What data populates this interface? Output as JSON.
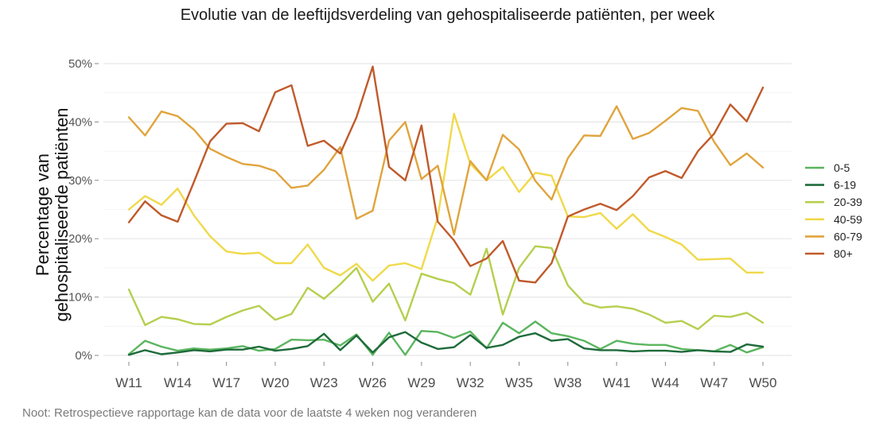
{
  "chart_data": {
    "type": "line",
    "title": "Evolutie van de leeftijdsverdeling van gehospitaliseerde patiënten, per week",
    "ylabel_line1": "Percentage van",
    "ylabel_line2": "gehospitaliseerde patiënten",
    "xlabel": "",
    "note": "Noot: Retrospectieve rapportage kan de data voor de laatste 4 weken nog veranderen",
    "ylim": [
      0,
      50
    ],
    "y_ticks": [
      0,
      10,
      20,
      30,
      40,
      50
    ],
    "y_tick_labels": [
      "0%",
      "10%",
      "20%",
      "30%",
      "40%",
      "50%"
    ],
    "x_tick_labels": [
      "W11",
      "W14",
      "W17",
      "W20",
      "W23",
      "W26",
      "W29",
      "W32",
      "W35",
      "W38",
      "W41",
      "W44",
      "W47",
      "W50"
    ],
    "x": [
      11,
      12,
      13,
      14,
      15,
      16,
      17,
      18,
      19,
      20,
      21,
      22,
      23,
      24,
      25,
      26,
      27,
      28,
      29,
      30,
      31,
      32,
      33,
      34,
      35,
      36,
      37,
      38,
      39,
      40,
      41,
      42,
      43,
      44,
      45,
      46,
      47,
      48,
      49,
      50
    ],
    "legend_position": "right",
    "series": [
      {
        "name": "0-5",
        "color": "#5bb55f",
        "values": [
          0.2,
          2.5,
          1.5,
          0.8,
          1.2,
          1.0,
          1.2,
          1.6,
          0.8,
          1.1,
          2.7,
          2.6,
          2.7,
          1.7,
          3.6,
          0.1,
          3.9,
          0.1,
          4.2,
          4.0,
          3.0,
          4.1,
          1.2,
          5.6,
          3.8,
          5.8,
          3.8,
          3.3,
          2.5,
          1.1,
          2.5,
          2.0,
          1.8,
          1.8,
          1.1,
          0.9,
          0.7,
          1.8,
          0.5,
          1.4
        ]
      },
      {
        "name": "6-19",
        "color": "#1e6b3a",
        "values": [
          0.1,
          0.9,
          0.2,
          0.5,
          0.9,
          0.7,
          1.0,
          1.0,
          1.5,
          0.8,
          1.1,
          1.6,
          3.7,
          0.9,
          3.4,
          0.5,
          3.1,
          4.0,
          2.2,
          1.1,
          1.4,
          3.5,
          1.3,
          1.8,
          3.2,
          3.8,
          2.5,
          2.8,
          1.2,
          0.9,
          0.9,
          0.7,
          0.8,
          0.8,
          0.6,
          0.9,
          0.7,
          0.6,
          1.9,
          1.5
        ]
      },
      {
        "name": "20-39",
        "color": "#b5cf4e",
        "values": [
          11.3,
          5.2,
          6.6,
          6.2,
          5.4,
          5.3,
          6.6,
          7.7,
          8.5,
          6.1,
          7.1,
          11.6,
          9.7,
          12.2,
          15.0,
          9.2,
          12.3,
          6.0,
          14.0,
          13.1,
          12.4,
          10.4,
          18.3,
          7.0,
          15.0,
          18.7,
          18.4,
          12.0,
          9.0,
          8.2,
          8.4,
          8.0,
          7.0,
          5.6,
          5.9,
          4.5,
          6.8,
          6.6,
          7.3,
          5.6
        ]
      },
      {
        "name": "40-59",
        "color": "#f0d94a",
        "values": [
          25.0,
          27.3,
          25.8,
          28.6,
          24.0,
          20.4,
          17.8,
          17.4,
          17.6,
          15.8,
          15.8,
          19.0,
          15.0,
          13.7,
          15.7,
          12.8,
          15.4,
          15.8,
          14.8,
          23.7,
          41.4,
          32.8,
          30.0,
          32.3,
          28.0,
          31.3,
          30.8,
          23.8,
          23.7,
          24.4,
          21.7,
          24.2,
          21.4,
          20.3,
          19.0,
          16.4,
          16.5,
          16.6,
          14.2,
          14.2
        ]
      },
      {
        "name": "60-79",
        "color": "#e0a43d",
        "values": [
          40.8,
          37.7,
          41.8,
          41.0,
          38.7,
          35.4,
          34.0,
          32.8,
          32.5,
          31.6,
          28.7,
          29.1,
          31.8,
          35.7,
          23.4,
          24.8,
          36.8,
          40.0,
          30.2,
          32.5,
          20.7,
          33.3,
          30.0,
          37.8,
          35.3,
          29.9,
          26.7,
          33.8,
          37.7,
          37.6,
          42.7,
          37.1,
          38.1,
          40.2,
          42.4,
          41.9,
          36.6,
          32.6,
          34.6,
          32.2
        ]
      },
      {
        "name": "80+",
        "color": "#c05a2b",
        "values": [
          22.8,
          26.4,
          24.0,
          22.9,
          29.7,
          36.7,
          39.7,
          39.8,
          38.4,
          45.1,
          46.3,
          35.9,
          36.8,
          34.6,
          40.8,
          49.5,
          32.3,
          30.0,
          39.4,
          22.9,
          19.7,
          15.3,
          16.6,
          19.6,
          12.8,
          12.5,
          15.8,
          23.8,
          25.0,
          26.0,
          24.9,
          27.3,
          30.5,
          31.6,
          30.4,
          35.0,
          38.0,
          43.0,
          40.1,
          45.9
        ]
      }
    ]
  }
}
